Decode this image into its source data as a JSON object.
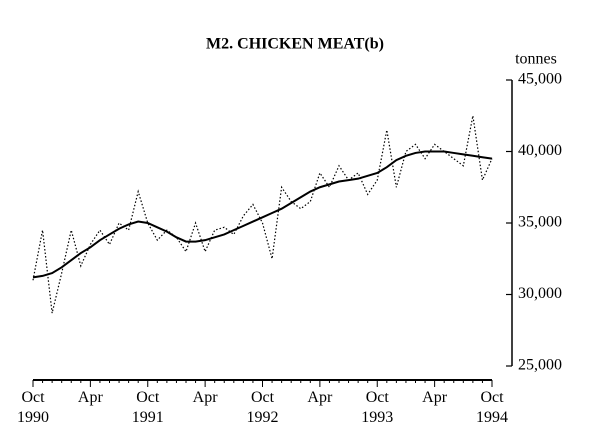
{
  "chart_data": {
    "type": "line",
    "title": "M2. CHICKEN MEAT(b)",
    "y_label": "tonnes",
    "categories": [
      "Oct\n1990",
      null,
      null,
      null,
      null,
      null,
      "Apr",
      null,
      null,
      null,
      null,
      null,
      "Oct\n1991",
      null,
      null,
      null,
      null,
      null,
      "Apr",
      null,
      null,
      null,
      null,
      null,
      "Oct\n1992",
      null,
      null,
      null,
      null,
      null,
      "Apr",
      null,
      null,
      null,
      null,
      null,
      "Oct\n1993",
      null,
      null,
      null,
      null,
      null,
      "Apr",
      null,
      null,
      null,
      null,
      null,
      "Oct\n1994"
    ],
    "series": [
      {
        "color": "#000000",
        "dash": "dotted",
        "values": [
          31000,
          34500,
          28700,
          31500,
          34500,
          32000,
          33500,
          34500,
          33500,
          35000,
          34500,
          37200,
          35000,
          33800,
          34500,
          34000,
          33000,
          35000,
          33000,
          34500,
          34700,
          34200,
          35500,
          36300,
          35000,
          32500,
          37500,
          36500,
          36000,
          36500,
          38500,
          37500,
          39000,
          38000,
          38500,
          37000,
          38000,
          41500,
          37500,
          40000,
          40500,
          39500,
          40500,
          40000,
          39500,
          39000,
          42500,
          38000,
          39500
        ]
      },
      {
        "color": "#000000",
        "dash": "solid",
        "values": [
          31200,
          31300,
          31500,
          31900,
          32400,
          32900,
          33300,
          33800,
          34200,
          34600,
          34900,
          35100,
          35000,
          34700,
          34400,
          34000,
          33700,
          33700,
          33800,
          34000,
          34200,
          34500,
          34800,
          35100,
          35400,
          35700,
          36000,
          36400,
          36800,
          37200,
          37500,
          37700,
          37900,
          38000,
          38100,
          38300,
          38500,
          38900,
          39400,
          39700,
          39900,
          40000,
          40000,
          40000,
          39900,
          39800,
          39700,
          39600,
          39500
        ]
      }
    ],
    "ylim": [
      25000,
      45000
    ],
    "yticks": [
      {
        "value": 25000,
        "label": "25,000"
      },
      {
        "value": 30000,
        "label": "30,000"
      },
      {
        "value": 35000,
        "label": "35,000"
      },
      {
        "value": 40000,
        "label": "40,000"
      },
      {
        "value": 45000,
        "label": "45,000"
      }
    ],
    "y_axis_side": "right",
    "grid": false
  }
}
